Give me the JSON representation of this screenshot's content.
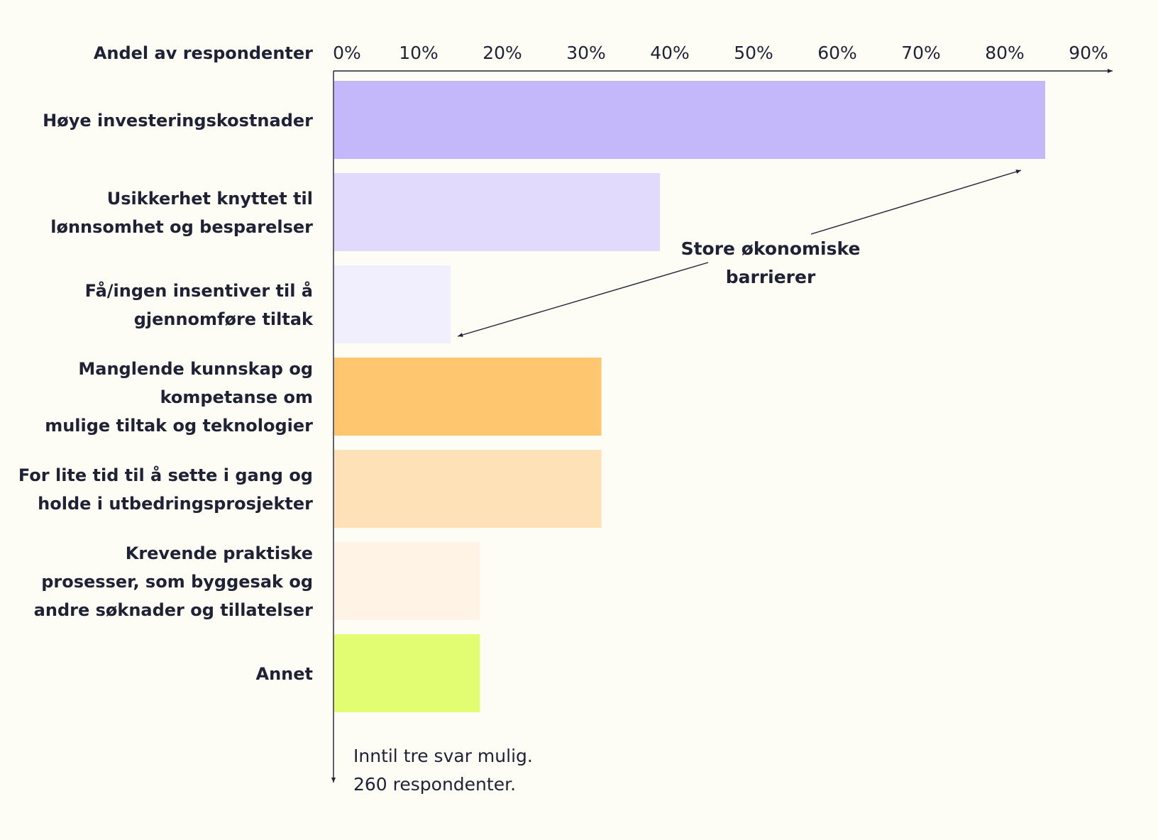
{
  "chart_data": {
    "type": "bar",
    "orientation": "horizontal",
    "axis_title": "Andel av respondenter",
    "x_unit": "%",
    "xlim": [
      0,
      93
    ],
    "ticks": [
      0,
      10,
      20,
      30,
      40,
      50,
      60,
      70,
      80,
      90
    ],
    "tick_labels": [
      "0%",
      "10%",
      "20%",
      "30%",
      "40%",
      "50%",
      "60%",
      "70%",
      "80%",
      "90%"
    ],
    "grid": false,
    "categories": [
      [
        "Høye investeringskostnader"
      ],
      [
        "Usikkerhet knyttet til",
        "lønnsomhet og besparelser"
      ],
      [
        "Få/ingen insentiver til å",
        "gjennomføre tiltak"
      ],
      [
        "Manglende kunnskap og",
        "kompetanse om",
        "mulige tiltak og teknologier"
      ],
      [
        "For lite tid til å sette i gang og",
        "holde i utbedringsprosjekter"
      ],
      [
        "Krevende praktiske",
        "prosesser, som byggesak og",
        "andre søknader og tillatelser"
      ],
      [
        "Annet"
      ]
    ],
    "values": [
      85,
      39,
      14,
      32,
      32,
      17.5,
      17.5
    ],
    "colors": [
      "#c4b8fb",
      "#e1dafd",
      "#f1effe",
      "#ffc670",
      "#fee1b6",
      "#fff3e5",
      "#e2fd72"
    ],
    "annotation": {
      "lines": [
        "Store økonomiske",
        "barrierer"
      ],
      "points_to": [
        0,
        2
      ]
    },
    "note": [
      "Inntil tre svar mulig.",
      "260 respondenter."
    ]
  }
}
